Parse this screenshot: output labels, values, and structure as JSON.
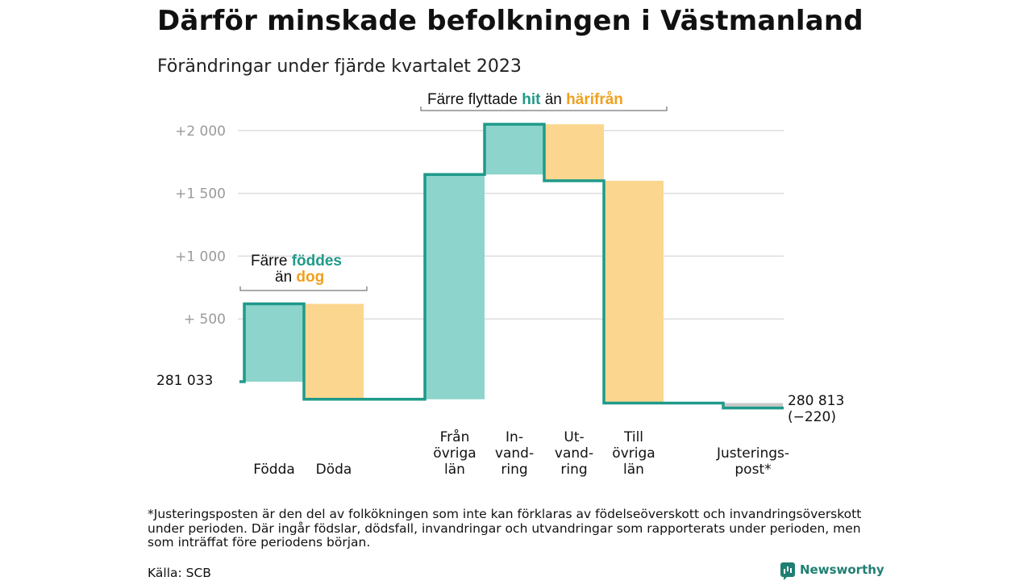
{
  "title": "Därför minskade befolkningen i Västmanland",
  "subtitle": "Förändringar under fjärde kvartalet 2023",
  "colors": {
    "inflow": "#8dd4cc",
    "outflow": "#fbd68f",
    "line": "#1f9a8a",
    "adjustment": "#c8c8c8",
    "grid": "#dddddd"
  },
  "annotations": {
    "migration": {
      "prefix": "Färre flyttade",
      "green": "hit",
      "mid": "än",
      "orange": "härifrån"
    },
    "births": {
      "prefix": "Färre",
      "green": "föddes",
      "mid": "än",
      "orange": "dog"
    }
  },
  "chart_data": {
    "type": "bar",
    "subtype": "waterfall",
    "baseline": 281033,
    "baseline_label": "281   033",
    "y_ticks": [
      {
        "value": 500,
        "label": "+   500"
      },
      {
        "value": 1000,
        "label": "+1   000"
      },
      {
        "value": 1500,
        "label": "+1   500"
      },
      {
        "value": 2000,
        "label": "+2   000"
      }
    ],
    "ylim": [
      -350,
      2150
    ],
    "steps": [
      {
        "category": "Födda",
        "label_lines": [
          "Födda"
        ],
        "value": 620,
        "kind": "inflow"
      },
      {
        "category": "Döda",
        "label_lines": [
          "Döda"
        ],
        "value": -760,
        "kind": "outflow"
      },
      {
        "category": "Från övriga län",
        "label_lines": [
          "Från",
          "övriga",
          "län"
        ],
        "value": 1790,
        "kind": "inflow"
      },
      {
        "category": "Invandring",
        "label_lines": [
          "In-",
          "vand-",
          "ring"
        ],
        "value": 400,
        "kind": "inflow"
      },
      {
        "category": "Utvandring",
        "label_lines": [
          "Ut-",
          "vand-",
          "ring"
        ],
        "value": -450,
        "kind": "outflow"
      },
      {
        "category": "Till övriga län",
        "label_lines": [
          "Till",
          "övriga",
          "län"
        ],
        "value": -1770,
        "kind": "outflow"
      },
      {
        "category": "Justeringspost*",
        "label_lines": [
          "Justerings-",
          "post*"
        ],
        "value": -40,
        "kind": "adjustment"
      }
    ],
    "end_value_label": "280 813",
    "end_change_label": "(−220)"
  },
  "footnote": "*Justeringsposten är den del av folkökningen som inte kan förklaras av födelseöverskott och invandringsöverskott under perioden. Där ingår födslar, dödsfall, invandringar och utvandringar som rapporterats under perioden, men som inträffat före periodens början.",
  "source": "Källa: SCB",
  "brand": "Newsworthy",
  "brand_icon": "bar-chart-icon"
}
